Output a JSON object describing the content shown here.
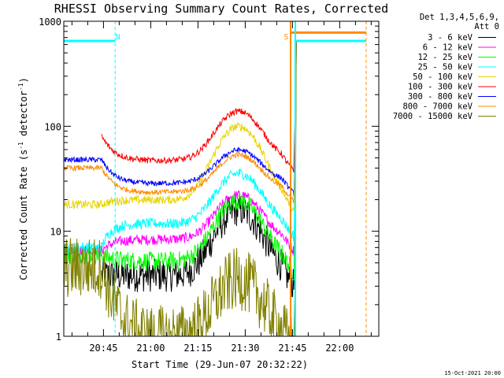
{
  "chart_data": {
    "type": "line",
    "title": "RHESSI Observing Summary Count Rates, Corrected",
    "xlabel": "Start Time (29-Jun-07 20:32:22)",
    "ylabel": "Corrected Count Rate (s",
    "ylabel_sup1": "-1",
    "ylabel_mid": " detector",
    "ylabel_sup2": "-1",
    "ylabel_end": ")",
    "y_scale": "log",
    "ylim": [
      1,
      1000
    ],
    "y_ticks": [
      {
        "value": 1,
        "label": "1"
      },
      {
        "value": 10,
        "label": "10"
      },
      {
        "value": 100,
        "label": "100"
      },
      {
        "value": 1000,
        "label": "1000"
      }
    ],
    "x_unit": "minutes after 20:32:22",
    "xlim": [
      0,
      100
    ],
    "x_ticks": [
      {
        "value": 12.6,
        "label": "20:45"
      },
      {
        "value": 27.6,
        "label": "21:00"
      },
      {
        "value": 42.6,
        "label": "21:15"
      },
      {
        "value": 57.6,
        "label": "21:30"
      },
      {
        "value": 72.6,
        "label": "21:45"
      },
      {
        "value": 87.6,
        "label": "22:00"
      }
    ],
    "legend_header": [
      "Det 1,3,4,5,6,9,",
      "Att 0"
    ],
    "legend_position": "right",
    "series": [
      {
        "name": "3 - 6 keV",
        "color": "#000000",
        "pre": null,
        "min": 3.8,
        "peak": 16,
        "end": 3.8,
        "noise": 0.16
      },
      {
        "name": "6 - 12 keV",
        "color": "#ff00ff",
        "pre": 6.5,
        "min": 8.3,
        "peak": 22,
        "end": 8.5,
        "noise": 0.05
      },
      {
        "name": "12 - 25 keV",
        "color": "#00ff00",
        "pre": 6.0,
        "min": 5.2,
        "peak": 19.5,
        "end": 5.2,
        "noise": 0.09
      },
      {
        "name": "25 - 50 keV",
        "color": "#00ffff",
        "pre": 7.0,
        "min": 12,
        "peak": 36,
        "end": 11.5,
        "noise": 0.05
      },
      {
        "name": "50 - 100 keV",
        "color": "#e8d400",
        "pre": 18,
        "min": 20,
        "peak": 100,
        "end": 19.5,
        "noise": 0.04
      },
      {
        "name": "100 - 300 keV",
        "color": "#ff0000",
        "pre": null,
        "min": 47,
        "peak": 138,
        "end": 48,
        "noise": 0.03,
        "jump": 80
      },
      {
        "name": "300 - 800 keV",
        "color": "#0000ff",
        "pre": 48,
        "min": 28,
        "peak": 58,
        "end": 30,
        "noise": 0.025
      },
      {
        "name": "800 - 7000 keV",
        "color": "#ff8c00",
        "pre": 40,
        "min": 23,
        "peak": 52,
        "end": 25,
        "noise": 0.025
      },
      {
        "name": "7000 - 15000 keV",
        "color": "#808000",
        "pre": 4.5,
        "min": 1.0,
        "peak": 3.5,
        "end": 1.0,
        "noise": 0.3
      }
    ],
    "shading": {
      "lines": [
        {
          "label": "",
          "color": "#00ffff",
          "x": 16.3,
          "style": "dashed"
        },
        {
          "label": "",
          "color": "#00ffff",
          "x": 73.5,
          "style": "solid"
        },
        {
          "label": "",
          "color": "#00ffff",
          "x": 96.0,
          "style": "dashed"
        },
        {
          "label": "",
          "color": "#ff8c00",
          "x": 72.0,
          "style": "solid"
        },
        {
          "label": "",
          "color": "#ff8c00",
          "x": 96.0,
          "style": "dashed"
        }
      ],
      "markers": [
        {
          "label": "N",
          "color": "#00ffff",
          "x": 17.2
        },
        {
          "label": "S",
          "color": "#ff8c00",
          "x": 70.6
        }
      ],
      "bars": [
        {
          "color": "#00ffff",
          "x0": 0,
          "x1": 16.3,
          "y": 650
        },
        {
          "color": "#00ffff",
          "x0": 73.5,
          "x1": 96.0,
          "y": 650
        },
        {
          "color": "#ff8c00",
          "x0": 72.0,
          "x1": 96.0,
          "y": 780
        }
      ]
    }
  },
  "stamp": "15-Oct-2021 20:00"
}
